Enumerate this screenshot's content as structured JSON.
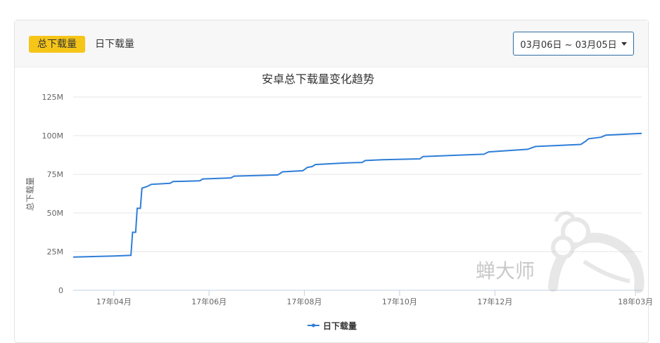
{
  "tabs": [
    {
      "label": "总下载量",
      "active": true
    },
    {
      "label": "日下载量",
      "active": false
    }
  ],
  "date_range": {
    "label": "03月06日 ~ 03月05日"
  },
  "watermark": {
    "text": "蝉大师"
  },
  "colors": {
    "accent": "#f5c518",
    "series": "#2f7ed8",
    "button_border": "#2e6da4"
  },
  "chart_data": {
    "type": "line",
    "title": "安卓总下载量变化趋势",
    "ylabel": "总下载量",
    "xlabel": "",
    "ylim": [
      0,
      125
    ],
    "yticks": [
      {
        "value": 0,
        "label": "0"
      },
      {
        "value": 25,
        "label": "25M"
      },
      {
        "value": 50,
        "label": "50M"
      },
      {
        "value": 75,
        "label": "75M"
      },
      {
        "value": 100,
        "label": "100M"
      },
      {
        "value": 125,
        "label": "125M"
      }
    ],
    "xlim": [
      "2017-03-06",
      "2018-03-05"
    ],
    "xticks": [
      {
        "date": "2017-04-01",
        "label": "17年04月"
      },
      {
        "date": "2017-06-01",
        "label": "17年06月"
      },
      {
        "date": "2017-08-01",
        "label": "17年08月"
      },
      {
        "date": "2017-10-01",
        "label": "17年10月"
      },
      {
        "date": "2017-12-01",
        "label": "17年12月"
      },
      {
        "date": "2018-03-01",
        "label": "18年03月"
      }
    ],
    "grid": true,
    "legend": "bottom-center",
    "series": [
      {
        "name": "日下载量",
        "points": [
          [
            "2017-03-06",
            21.5
          ],
          [
            "2017-04-01",
            22.2
          ],
          [
            "2017-04-12",
            22.6
          ],
          [
            "2017-04-13",
            37.5
          ],
          [
            "2017-04-15",
            37.5
          ],
          [
            "2017-04-16",
            53.0
          ],
          [
            "2017-04-18",
            53.0
          ],
          [
            "2017-04-19",
            66.0
          ],
          [
            "2017-04-22",
            67.0
          ],
          [
            "2017-04-25",
            68.5
          ],
          [
            "2017-05-07",
            69.2
          ],
          [
            "2017-05-09",
            70.3
          ],
          [
            "2017-05-26",
            70.8
          ],
          [
            "2017-05-28",
            72.0
          ],
          [
            "2017-06-15",
            72.7
          ],
          [
            "2017-06-17",
            73.8
          ],
          [
            "2017-07-15",
            74.6
          ],
          [
            "2017-07-18",
            76.6
          ],
          [
            "2017-07-31",
            77.3
          ],
          [
            "2017-08-03",
            79.5
          ],
          [
            "2017-08-06",
            80.0
          ],
          [
            "2017-08-08",
            81.3
          ],
          [
            "2017-08-27",
            82.3
          ],
          [
            "2017-09-07",
            82.7
          ],
          [
            "2017-09-09",
            83.9
          ],
          [
            "2017-09-20",
            84.4
          ],
          [
            "2017-10-14",
            85.0
          ],
          [
            "2017-10-16",
            86.5
          ],
          [
            "2017-11-24",
            88.0
          ],
          [
            "2017-11-27",
            89.5
          ],
          [
            "2017-12-22",
            91.2
          ],
          [
            "2017-12-27",
            93.0
          ],
          [
            "2018-01-25",
            94.3
          ],
          [
            "2018-01-28",
            96.3
          ],
          [
            "2018-01-30",
            98.0
          ],
          [
            "2018-02-07",
            99.0
          ],
          [
            "2018-02-10",
            100.3
          ],
          [
            "2018-03-05",
            101.5
          ]
        ]
      }
    ]
  }
}
